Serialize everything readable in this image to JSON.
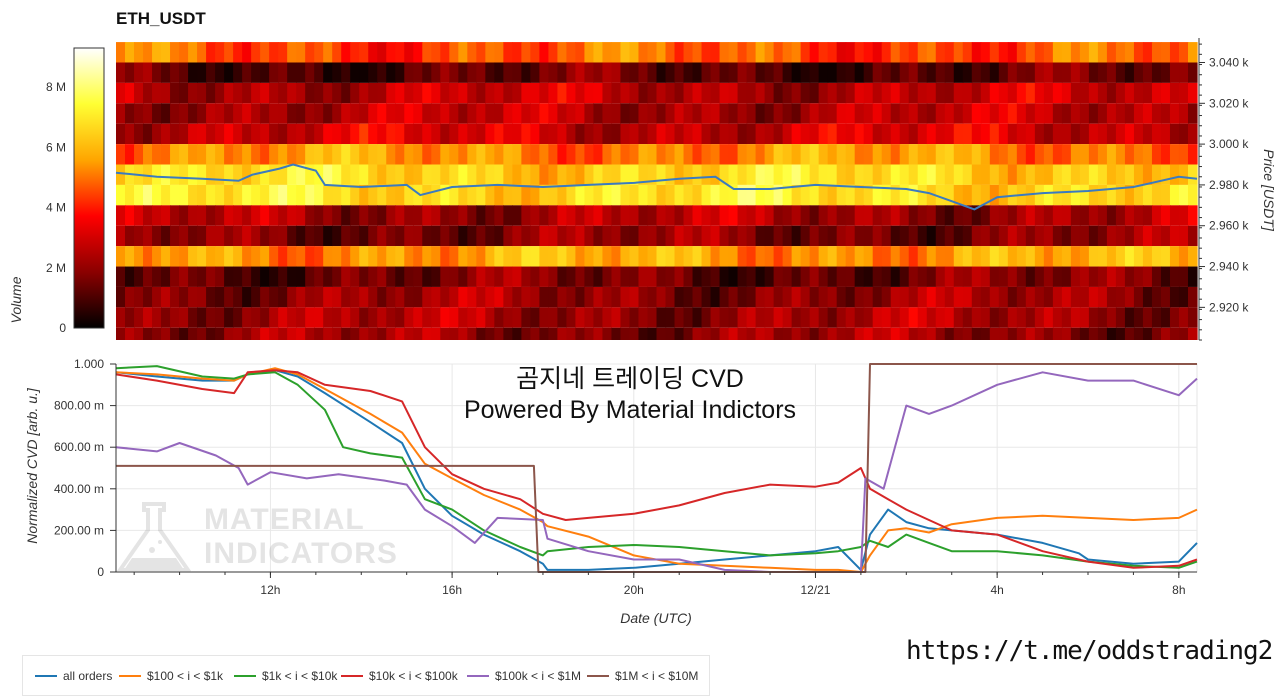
{
  "title": "ETH_USDT",
  "colorbar": {
    "label": "Volume",
    "ticks": [
      "0",
      "2 M",
      "4 M",
      "6 M",
      "8 M"
    ],
    "tick_values": [
      0,
      2,
      4,
      6,
      8
    ],
    "max": 9.3,
    "colors": [
      "#000000",
      "#8b0000",
      "#ff0000",
      "#ffa500",
      "#ffff33",
      "#ffffff"
    ]
  },
  "overlay": {
    "line1": "곰지네 트레이딩 CVD",
    "line2": "Powered By Material Indictors"
  },
  "link": "https://t.me/oddstrading2",
  "watermark": {
    "line1": "MATERIAL",
    "line2": "INDICATORS"
  },
  "chart_data": [
    {
      "type": "heatmap",
      "title": "ETH_USDT",
      "ylabel": "Price [USDT]",
      "ylim": [
        2904,
        3052
      ],
      "ytick_values": [
        2920,
        2940,
        2960,
        2980,
        3000,
        3020,
        3040
      ],
      "ytick_labels": [
        "2.920 k",
        "2.940 k",
        "2.960 k",
        "2.980 k",
        "3.000 k",
        "3.020 k",
        "3.040 k"
      ],
      "price_bin_size": 10,
      "x_range_hours": [
        8.6,
        32.4
      ],
      "colorbar_label": "Volume",
      "volume_by_price_bin_millions": [
        {
          "price_low": 3040,
          "volume": 4.6
        },
        {
          "price_low": 3030,
          "volume": 1.2
        },
        {
          "price_low": 3020,
          "volume": 2.6
        },
        {
          "price_low": 3010,
          "volume": 2.5
        },
        {
          "price_low": 3000,
          "volume": 2.9
        },
        {
          "price_low": 2990,
          "volume": 5.3
        },
        {
          "price_low": 2980,
          "volume": 6.6
        },
        {
          "price_low": 2970,
          "volume": 6.8
        },
        {
          "price_low": 2960,
          "volume": 2.3
        },
        {
          "price_low": 2950,
          "volume": 1.8
        },
        {
          "price_low": 2940,
          "volume": 5.6
        },
        {
          "price_low": 2930,
          "volume": 1.5
        },
        {
          "price_low": 2920,
          "volume": 2.0
        },
        {
          "price_low": 2910,
          "volume": 2.2
        },
        {
          "price_low": 2900,
          "volume": 2.0
        }
      ],
      "price_line": {
        "color": "#3b7bbf",
        "x": [
          8.6,
          9.5,
          10.5,
          11.3,
          11.6,
          12.2,
          12.5,
          13.0,
          13.2,
          14.0,
          15.0,
          15.3,
          16.0,
          17.0,
          18.0,
          19.0,
          20.0,
          21.0,
          21.8,
          22.2,
          23.0,
          24.0,
          25.0,
          26.0,
          26.5,
          27.0,
          27.5,
          28.0,
          29.0,
          30.0,
          31.0,
          32.0,
          32.4
        ],
        "y": [
          2986,
          2984,
          2983,
          2982,
          2985,
          2988,
          2990,
          2987,
          2980,
          2979,
          2980,
          2975,
          2979,
          2980,
          2979,
          2980,
          2981,
          2983,
          2984,
          2978,
          2978,
          2980,
          2979,
          2978,
          2976,
          2972,
          2968,
          2974,
          2976,
          2977,
          2979,
          2984,
          2983
        ]
      }
    },
    {
      "type": "line",
      "xlabel": "Date (UTC)",
      "ylabel": "Normalized CVD [arb. u.]",
      "xlim": [
        8.6,
        32.4
      ],
      "ylim": [
        0,
        1
      ],
      "xtick_values": [
        12,
        16,
        20,
        24,
        28,
        32
      ],
      "xtick_labels": [
        "12h",
        "16h",
        "20h",
        "12/21",
        "4h",
        "8h"
      ],
      "ytick_values": [
        0,
        0.2,
        0.4,
        0.6,
        0.8,
        1.0
      ],
      "ytick_labels": [
        "0",
        "200.00 m",
        "400.00 m",
        "600.00 m",
        "800.00 m",
        "1.000"
      ],
      "grid": true,
      "legend_position": "bottom",
      "series": [
        {
          "name": "all orders",
          "color": "#1f77b4",
          "x": [
            8.6,
            9.5,
            10.5,
            11.2,
            11.5,
            12.1,
            12.6,
            13.2,
            14.2,
            14.9,
            15.4,
            16.0,
            16.7,
            17.5,
            18.0,
            18.1,
            19.0,
            20.0,
            21.0,
            22.0,
            23.0,
            24.0,
            24.5,
            25.0,
            25.2,
            25.6,
            26.0,
            26.5,
            27.0,
            28.0,
            29.0,
            29.8,
            30.0,
            31.0,
            32.0,
            32.4
          ],
          "y": [
            0.96,
            0.94,
            0.92,
            0.92,
            0.95,
            0.97,
            0.94,
            0.86,
            0.72,
            0.62,
            0.4,
            0.27,
            0.18,
            0.1,
            0.04,
            0.01,
            0.01,
            0.02,
            0.04,
            0.06,
            0.08,
            0.1,
            0.12,
            0.01,
            0.18,
            0.3,
            0.24,
            0.21,
            0.2,
            0.18,
            0.14,
            0.09,
            0.06,
            0.04,
            0.05,
            0.14
          ]
        },
        {
          "name": "$100 < i < $1k",
          "color": "#ff7f0e",
          "x": [
            8.6,
            9.5,
            10.5,
            11.2,
            11.5,
            12.1,
            12.6,
            13.2,
            14.2,
            14.9,
            15.4,
            16.0,
            16.7,
            17.5,
            18.0,
            18.1,
            19.0,
            20.0,
            21.0,
            22.0,
            23.0,
            24.0,
            24.5,
            25.0,
            25.2,
            25.6,
            26.0,
            26.5,
            27.0,
            28.0,
            29.0,
            30.0,
            31.0,
            32.0,
            32.4
          ],
          "y": [
            0.96,
            0.95,
            0.93,
            0.92,
            0.95,
            0.98,
            0.95,
            0.88,
            0.76,
            0.67,
            0.52,
            0.45,
            0.37,
            0.3,
            0.24,
            0.22,
            0.17,
            0.08,
            0.04,
            0.03,
            0.02,
            0.01,
            0.01,
            0.0,
            0.08,
            0.2,
            0.21,
            0.19,
            0.23,
            0.26,
            0.27,
            0.26,
            0.25,
            0.26,
            0.3
          ]
        },
        {
          "name": "$1k < i < $10k",
          "color": "#2ca02c",
          "x": [
            8.6,
            9.5,
            10.5,
            11.2,
            11.5,
            12.1,
            12.6,
            13.2,
            13.6,
            14.2,
            14.9,
            15.4,
            16.0,
            16.7,
            17.5,
            18.0,
            18.1,
            19.0,
            20.0,
            21.0,
            22.0,
            23.0,
            24.0,
            24.5,
            25.0,
            25.2,
            25.6,
            26.0,
            26.5,
            27.0,
            28.0,
            29.0,
            30.0,
            31.0,
            32.0,
            32.4
          ],
          "y": [
            0.98,
            0.99,
            0.94,
            0.93,
            0.95,
            0.96,
            0.9,
            0.78,
            0.6,
            0.57,
            0.55,
            0.35,
            0.3,
            0.2,
            0.12,
            0.08,
            0.1,
            0.12,
            0.13,
            0.12,
            0.1,
            0.08,
            0.09,
            0.1,
            0.12,
            0.15,
            0.12,
            0.18,
            0.14,
            0.1,
            0.1,
            0.08,
            0.05,
            0.03,
            0.02,
            0.05
          ]
        },
        {
          "name": "$10k < i < $100k",
          "color": "#d62728",
          "x": [
            8.6,
            9.5,
            10.5,
            11.2,
            11.5,
            12.1,
            12.6,
            13.2,
            14.2,
            14.9,
            15.4,
            16.0,
            16.7,
            17.5,
            18.0,
            18.5,
            19.0,
            20.0,
            21.0,
            22.0,
            23.0,
            24.0,
            24.5,
            25.0,
            25.2,
            25.6,
            26.0,
            26.5,
            27.0,
            28.0,
            29.0,
            30.0,
            31.0,
            32.0,
            32.4
          ],
          "y": [
            0.95,
            0.92,
            0.88,
            0.86,
            0.96,
            0.97,
            0.96,
            0.9,
            0.87,
            0.82,
            0.6,
            0.47,
            0.4,
            0.35,
            0.28,
            0.25,
            0.26,
            0.28,
            0.32,
            0.38,
            0.42,
            0.41,
            0.43,
            0.5,
            0.4,
            0.35,
            0.3,
            0.25,
            0.2,
            0.18,
            0.1,
            0.05,
            0.02,
            0.03,
            0.06
          ]
        },
        {
          "name": "$100k < i < $1M",
          "color": "#9467bd",
          "x": [
            8.6,
            9.5,
            10.0,
            10.8,
            11.3,
            11.5,
            12.0,
            12.8,
            13.5,
            14.5,
            15.0,
            15.4,
            16.0,
            16.5,
            17.0,
            18.0,
            18.1,
            19.0,
            20.0,
            21.0,
            22.0,
            23.0,
            24.0,
            24.5,
            25.0,
            25.1,
            25.5,
            26.0,
            26.5,
            27.0,
            28.0,
            29.0,
            30.0,
            31.0,
            32.0,
            32.4
          ],
          "y": [
            0.6,
            0.58,
            0.62,
            0.56,
            0.5,
            0.42,
            0.48,
            0.45,
            0.47,
            0.44,
            0.42,
            0.3,
            0.22,
            0.14,
            0.26,
            0.25,
            0.16,
            0.1,
            0.06,
            0.06,
            0.01,
            0.0,
            0.0,
            0.0,
            0.0,
            0.45,
            0.4,
            0.8,
            0.76,
            0.8,
            0.9,
            0.96,
            0.92,
            0.92,
            0.85,
            0.93
          ]
        },
        {
          "name": "$1M < i < $10M",
          "color": "#8c564b",
          "x": [
            8.6,
            17.8,
            17.9,
            25.1,
            25.2,
            32.4
          ],
          "y": [
            0.51,
            0.51,
            0.0,
            0.0,
            1.0,
            1.0
          ]
        }
      ]
    }
  ]
}
